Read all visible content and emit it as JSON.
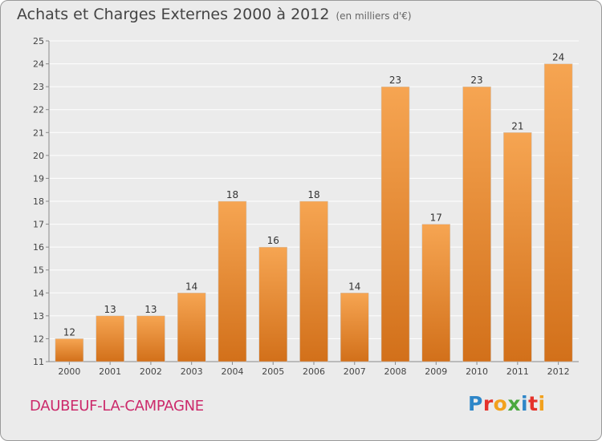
{
  "header": {
    "title": "Achats et Charges Externes 2000 à 2012",
    "unit": "(en milliers d'€)"
  },
  "footer": {
    "commune": "DAUBEUF-LA-CAMPAGNE",
    "logo": "Proxiti"
  },
  "colors": {
    "bar_top": "#f6a552",
    "bar_bottom": "#d2701a",
    "background": "#ebebeb",
    "grid": "#ffffff",
    "commune_text": "#cc2a6b",
    "logo_letters": [
      "#2e86c8",
      "#e5322b",
      "#f2a11d",
      "#4aa83f",
      "#2e86c8",
      "#e5322b",
      "#f2a11d"
    ]
  },
  "chart_data": {
    "type": "bar",
    "title": "Achats et Charges Externes 2000 à 2012",
    "subtitle": "(en milliers d'€)",
    "categories": [
      "2000",
      "2001",
      "2002",
      "2003",
      "2004",
      "2005",
      "2006",
      "2007",
      "2008",
      "2009",
      "2010",
      "2011",
      "2012"
    ],
    "values": [
      12,
      13,
      13,
      14,
      18,
      16,
      18,
      14,
      23,
      17,
      23,
      21,
      24
    ],
    "ylim": [
      11,
      25
    ],
    "yticks": [
      11,
      12,
      13,
      14,
      15,
      16,
      17,
      18,
      19,
      20,
      21,
      22,
      23,
      24,
      25
    ],
    "grid": true,
    "data_labels": true
  }
}
